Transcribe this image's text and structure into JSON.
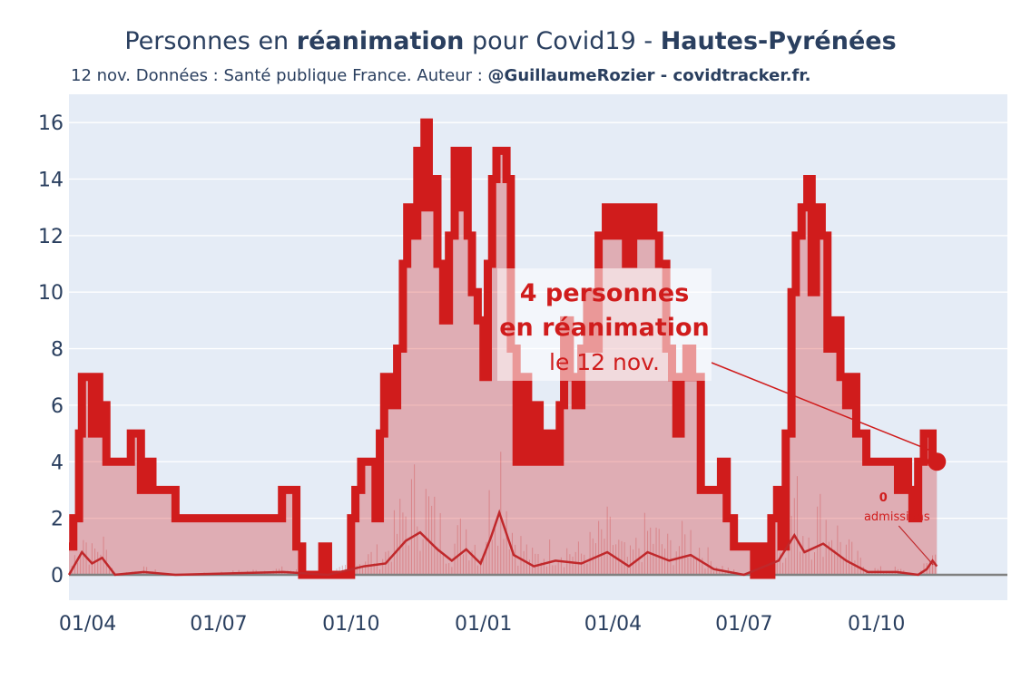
{
  "title": {
    "pre": "Personnes en ",
    "bold1": "réanimation",
    "mid": " pour Covid19 - ",
    "bold2": "Hautes-Pyrénées"
  },
  "subtitle": {
    "pre": "12 nov. Données : Santé publique France. Auteur : ",
    "bold": "@GuillaumeRozier - covidtracker.fr."
  },
  "annotation": {
    "line1": "4 personnes",
    "line2": "en réanimation",
    "line3": "le 12 nov."
  },
  "admissions_label": {
    "value": "0",
    "text": "admissions"
  },
  "colors": {
    "main_line": "#d01c1c",
    "fill": "rgba(208,28,28,0.30)",
    "admissions_line": "#c0282b",
    "plot_bg": "#e5ecf6",
    "grid": "#ffffff",
    "zero_line": "#808080"
  },
  "chart_data": {
    "type": "line",
    "x_tick_labels": [
      "01/04",
      "01/07",
      "01/10",
      "01/01",
      "01/04",
      "01/07",
      "01/10"
    ],
    "x_tick_dates": [
      "2020-04-01",
      "2020-07-01",
      "2020-10-01",
      "2021-01-01",
      "2021-04-01",
      "2021-07-01",
      "2021-10-01"
    ],
    "x_range": [
      "2020-03-19",
      "2021-12-31"
    ],
    "y_ticks": [
      0,
      2,
      4,
      6,
      8,
      10,
      12,
      14,
      16
    ],
    "ylim": [
      -0.9,
      17.0
    ],
    "grid": true,
    "series": [
      {
        "role": "reanimation",
        "points": [
          [
            "2020-03-19",
            1
          ],
          [
            "2020-03-22",
            2
          ],
          [
            "2020-03-26",
            5
          ],
          [
            "2020-03-28",
            7
          ],
          [
            "2020-04-02",
            7
          ],
          [
            "2020-04-04",
            5
          ],
          [
            "2020-04-06",
            7
          ],
          [
            "2020-04-09",
            5
          ],
          [
            "2020-04-11",
            6
          ],
          [
            "2020-04-14",
            4
          ],
          [
            "2020-04-28",
            4
          ],
          [
            "2020-05-01",
            5
          ],
          [
            "2020-05-06",
            5
          ],
          [
            "2020-05-08",
            3
          ],
          [
            "2020-05-11",
            4
          ],
          [
            "2020-05-16",
            3
          ],
          [
            "2020-05-29",
            3
          ],
          [
            "2020-06-01",
            2
          ],
          [
            "2020-08-10",
            2
          ],
          [
            "2020-08-14",
            3
          ],
          [
            "2020-08-20",
            3
          ],
          [
            "2020-08-24",
            1
          ],
          [
            "2020-08-28",
            0
          ],
          [
            "2020-09-08",
            0
          ],
          [
            "2020-09-11",
            1
          ],
          [
            "2020-09-15",
            0
          ],
          [
            "2020-09-27",
            0
          ],
          [
            "2020-10-01",
            2
          ],
          [
            "2020-10-04",
            3
          ],
          [
            "2020-10-08",
            4
          ],
          [
            "2020-10-14",
            4
          ],
          [
            "2020-10-18",
            2
          ],
          [
            "2020-10-21",
            5
          ],
          [
            "2020-10-24",
            7
          ],
          [
            "2020-10-28",
            6
          ],
          [
            "2020-11-02",
            8
          ],
          [
            "2020-11-06",
            11
          ],
          [
            "2020-11-09",
            13
          ],
          [
            "2020-11-12",
            12
          ],
          [
            "2020-11-16",
            15
          ],
          [
            "2020-11-19",
            13
          ],
          [
            "2020-11-21",
            16
          ],
          [
            "2020-11-24",
            13
          ],
          [
            "2020-11-27",
            14
          ],
          [
            "2020-11-30",
            11
          ],
          [
            "2020-12-04",
            9
          ],
          [
            "2020-12-08",
            12
          ],
          [
            "2020-12-12",
            15
          ],
          [
            "2020-12-15",
            13
          ],
          [
            "2020-12-18",
            15
          ],
          [
            "2020-12-21",
            12
          ],
          [
            "2020-12-24",
            10
          ],
          [
            "2020-12-28",
            9
          ],
          [
            "2021-01-01",
            7
          ],
          [
            "2021-01-04",
            11
          ],
          [
            "2021-01-07",
            14
          ],
          [
            "2021-01-10",
            15
          ],
          [
            "2021-01-14",
            15
          ],
          [
            "2021-01-17",
            14
          ],
          [
            "2021-01-20",
            8
          ],
          [
            "2021-01-24",
            4
          ],
          [
            "2021-01-28",
            7
          ],
          [
            "2021-02-01",
            4
          ],
          [
            "2021-02-05",
            6
          ],
          [
            "2021-02-09",
            4
          ],
          [
            "2021-02-14",
            5
          ],
          [
            "2021-02-18",
            4
          ],
          [
            "2021-02-23",
            6
          ],
          [
            "2021-02-26",
            9
          ],
          [
            "2021-03-02",
            7
          ],
          [
            "2021-03-06",
            6
          ],
          [
            "2021-03-10",
            8
          ],
          [
            "2021-03-14",
            10
          ],
          [
            "2021-03-18",
            8
          ],
          [
            "2021-03-22",
            12
          ],
          [
            "2021-03-27",
            13
          ],
          [
            "2021-04-01",
            12
          ],
          [
            "2021-04-05",
            13
          ],
          [
            "2021-04-10",
            11
          ],
          [
            "2021-04-15",
            13
          ],
          [
            "2021-04-20",
            12
          ],
          [
            "2021-04-25",
            13
          ],
          [
            "2021-04-29",
            12
          ],
          [
            "2021-05-03",
            11
          ],
          [
            "2021-05-08",
            8
          ],
          [
            "2021-05-12",
            7
          ],
          [
            "2021-05-15",
            5
          ],
          [
            "2021-05-18",
            7
          ],
          [
            "2021-05-22",
            8
          ],
          [
            "2021-05-26",
            7
          ],
          [
            "2021-06-01",
            3
          ],
          [
            "2021-06-12",
            3
          ],
          [
            "2021-06-15",
            4
          ],
          [
            "2021-06-19",
            2
          ],
          [
            "2021-06-24",
            1
          ],
          [
            "2021-07-06",
            1
          ],
          [
            "2021-07-08",
            0
          ],
          [
            "2021-07-12",
            1
          ],
          [
            "2021-07-16",
            0
          ],
          [
            "2021-07-20",
            2
          ],
          [
            "2021-07-24",
            3
          ],
          [
            "2021-07-27",
            1
          ],
          [
            "2021-07-30",
            5
          ],
          [
            "2021-08-03",
            10
          ],
          [
            "2021-08-06",
            12
          ],
          [
            "2021-08-10",
            13
          ],
          [
            "2021-08-14",
            14
          ],
          [
            "2021-08-17",
            10
          ],
          [
            "2021-08-20",
            13
          ],
          [
            "2021-08-24",
            12
          ],
          [
            "2021-08-28",
            8
          ],
          [
            "2021-09-02",
            9
          ],
          [
            "2021-09-06",
            7
          ],
          [
            "2021-09-10",
            6
          ],
          [
            "2021-09-13",
            7
          ],
          [
            "2021-09-17",
            5
          ],
          [
            "2021-09-20",
            5
          ],
          [
            "2021-09-24",
            4
          ],
          [
            "2021-10-12",
            4
          ],
          [
            "2021-10-16",
            3
          ],
          [
            "2021-10-20",
            4
          ],
          [
            "2021-10-23",
            3
          ],
          [
            "2021-10-26",
            2
          ],
          [
            "2021-10-30",
            4
          ],
          [
            "2021-11-03",
            5
          ],
          [
            "2021-11-07",
            5
          ],
          [
            "2021-11-09",
            4
          ],
          [
            "2021-11-12",
            4
          ]
        ]
      },
      {
        "role": "admissions",
        "points": [
          [
            "2020-03-19",
            0.0
          ],
          [
            "2020-03-28",
            0.8
          ],
          [
            "2020-04-04",
            0.4
          ],
          [
            "2020-04-11",
            0.6
          ],
          [
            "2020-04-20",
            0.0
          ],
          [
            "2020-05-10",
            0.1
          ],
          [
            "2020-06-01",
            0.0
          ],
          [
            "2020-08-15",
            0.1
          ],
          [
            "2020-09-15",
            0.0
          ],
          [
            "2020-10-10",
            0.3
          ],
          [
            "2020-10-25",
            0.4
          ],
          [
            "2020-11-08",
            1.2
          ],
          [
            "2020-11-18",
            1.5
          ],
          [
            "2020-11-30",
            0.9
          ],
          [
            "2020-12-10",
            0.5
          ],
          [
            "2020-12-20",
            0.9
          ],
          [
            "2020-12-30",
            0.4
          ],
          [
            "2021-01-06",
            1.3
          ],
          [
            "2021-01-12",
            2.2
          ],
          [
            "2021-01-22",
            0.7
          ],
          [
            "2021-02-05",
            0.3
          ],
          [
            "2021-02-20",
            0.5
          ],
          [
            "2021-03-10",
            0.4
          ],
          [
            "2021-03-28",
            0.8
          ],
          [
            "2021-04-12",
            0.3
          ],
          [
            "2021-04-25",
            0.8
          ],
          [
            "2021-05-10",
            0.5
          ],
          [
            "2021-05-25",
            0.7
          ],
          [
            "2021-06-10",
            0.2
          ],
          [
            "2021-07-01",
            0.0
          ],
          [
            "2021-07-25",
            0.5
          ],
          [
            "2021-08-05",
            1.4
          ],
          [
            "2021-08-12",
            0.8
          ],
          [
            "2021-08-25",
            1.1
          ],
          [
            "2021-09-10",
            0.5
          ],
          [
            "2021-09-25",
            0.1
          ],
          [
            "2021-10-15",
            0.1
          ],
          [
            "2021-10-30",
            0.0
          ],
          [
            "2021-11-05",
            0.2
          ],
          [
            "2021-11-09",
            0.5
          ],
          [
            "2021-11-12",
            0.3
          ]
        ]
      }
    ],
    "last_value": {
      "date": "2021-11-12",
      "value": 4
    }
  }
}
